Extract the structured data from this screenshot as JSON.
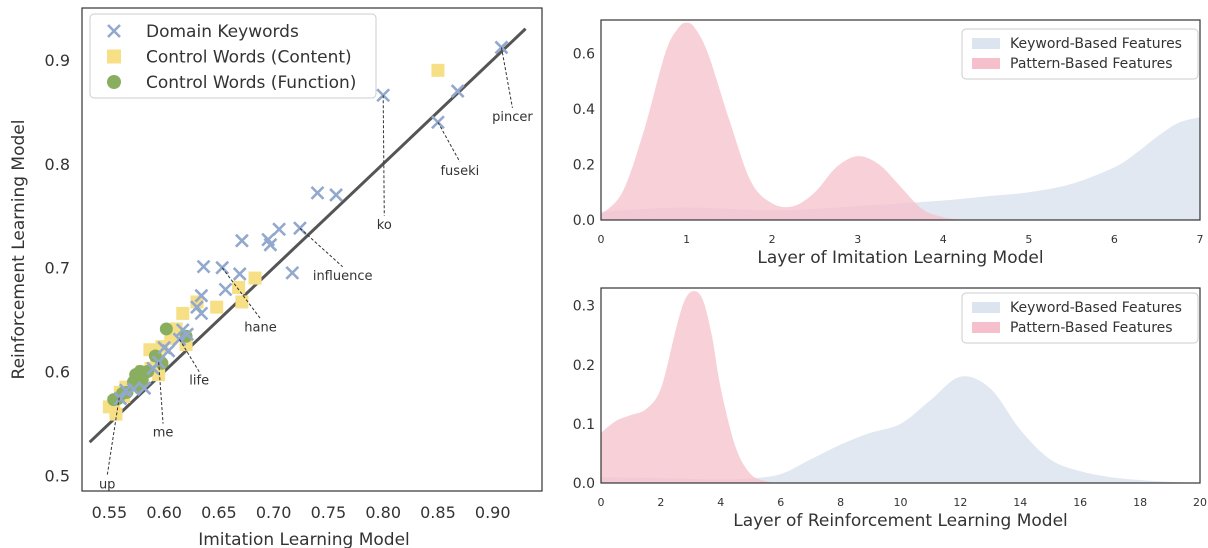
{
  "chart_data": [
    {
      "type": "scatter",
      "xlabel": "Imitation Learning Model",
      "ylabel": "Reinforcement Learning Model",
      "xlim": [
        0.525,
        0.945
      ],
      "ylim": [
        0.485,
        0.95
      ],
      "xticks": [
        "0.55",
        "0.60",
        "0.65",
        "0.70",
        "0.75",
        "0.80",
        "0.85",
        "0.90"
      ],
      "xtick_values": [
        0.55,
        0.6,
        0.65,
        0.7,
        0.75,
        0.8,
        0.85,
        0.9
      ],
      "yticks": [
        "0.5",
        "0.6",
        "0.7",
        "0.8",
        "0.9"
      ],
      "ytick_values": [
        0.5,
        0.6,
        0.7,
        0.8,
        0.9
      ],
      "legend_position": "top-left",
      "fit_line": [
        [
          0.532,
          0.532
        ],
        [
          0.93,
          0.93
        ]
      ],
      "series": [
        {
          "name": "Domain Keywords",
          "marker": "x",
          "color": "#92a8cd",
          "points": [
            [
              0.908,
              0.912
            ],
            [
              0.868,
              0.87
            ],
            [
              0.8,
              0.866
            ],
            [
              0.85,
              0.84
            ],
            [
              0.74,
              0.772
            ],
            [
              0.757,
              0.77
            ],
            [
              0.705,
              0.737
            ],
            [
              0.724,
              0.738
            ],
            [
              0.695,
              0.727
            ],
            [
              0.697,
              0.722
            ],
            [
              0.671,
              0.726
            ],
            [
              0.636,
              0.701
            ],
            [
              0.653,
              0.7
            ],
            [
              0.669,
              0.694
            ],
            [
              0.717,
              0.695
            ],
            [
              0.634,
              0.673
            ],
            [
              0.63,
              0.662
            ],
            [
              0.634,
              0.656
            ],
            [
              0.656,
              0.679
            ],
            [
              0.617,
              0.64
            ],
            [
              0.621,
              0.636
            ],
            [
              0.614,
              0.631
            ],
            [
              0.604,
              0.62
            ],
            [
              0.6,
              0.623
            ],
            [
              0.595,
              0.609
            ],
            [
              0.59,
              0.603
            ],
            [
              0.582,
              0.584
            ],
            [
              0.572,
              0.583
            ],
            [
              0.565,
              0.582
            ],
            [
              0.56,
              0.574
            ]
          ]
        },
        {
          "name": "Control Words (Content)",
          "marker": "square",
          "color": "#f6df85",
          "points": [
            [
              0.85,
              0.89
            ],
            [
              0.683,
              0.69
            ],
            [
              0.668,
              0.681
            ],
            [
              0.671,
              0.667
            ],
            [
              0.648,
              0.662
            ],
            [
              0.63,
              0.667
            ],
            [
              0.617,
              0.656
            ],
            [
              0.611,
              0.641
            ],
            [
              0.606,
              0.632
            ],
            [
              0.62,
              0.626
            ],
            [
              0.598,
              0.624
            ],
            [
              0.587,
              0.621
            ],
            [
              0.593,
              0.611
            ],
            [
              0.588,
              0.603
            ],
            [
              0.58,
              0.6
            ],
            [
              0.595,
              0.597
            ],
            [
              0.576,
              0.59
            ],
            [
              0.565,
              0.585
            ],
            [
              0.56,
              0.58
            ],
            [
              0.563,
              0.576
            ],
            [
              0.554,
              0.57
            ],
            [
              0.55,
              0.566
            ],
            [
              0.556,
              0.559
            ]
          ]
        },
        {
          "name": "Control Words (Function)",
          "marker": "circle",
          "color": "#8aae60",
          "points": [
            [
              0.602,
              0.641
            ],
            [
              0.62,
              0.634
            ],
            [
              0.592,
              0.615
            ],
            [
              0.598,
              0.608
            ],
            [
              0.585,
              0.6
            ],
            [
              0.578,
              0.6
            ],
            [
              0.574,
              0.597
            ],
            [
              0.58,
              0.592
            ],
            [
              0.572,
              0.59
            ],
            [
              0.576,
              0.586
            ],
            [
              0.566,
              0.58
            ],
            [
              0.562,
              0.579
            ],
            [
              0.558,
              0.574
            ],
            [
              0.554,
              0.573
            ]
          ]
        }
      ],
      "annotations": [
        {
          "text": "pincer",
          "point": [
            0.908,
            0.912
          ],
          "label": [
            0.918,
            0.85
          ]
        },
        {
          "text": "fuseki",
          "point": [
            0.85,
            0.84
          ],
          "label": [
            0.87,
            0.798
          ]
        },
        {
          "text": "ko",
          "point": [
            0.8,
            0.866
          ],
          "label": [
            0.801,
            0.746
          ]
        },
        {
          "text": "influence",
          "point": [
            0.724,
            0.738
          ],
          "label": [
            0.763,
            0.697
          ]
        },
        {
          "text": "hane",
          "point": [
            0.653,
            0.7
          ],
          "label": [
            0.688,
            0.647
          ]
        },
        {
          "text": "life",
          "point": [
            0.614,
            0.631
          ],
          "label": [
            0.632,
            0.596
          ]
        },
        {
          "text": "me",
          "point": [
            0.595,
            0.609
          ],
          "label": [
            0.599,
            0.546
          ]
        },
        {
          "text": "up",
          "point": [
            0.559,
            0.575
          ],
          "label": [
            0.548,
            0.496
          ]
        }
      ]
    },
    {
      "type": "area",
      "xlabel": "Layer of Imitation Learning Model",
      "ylabel": "",
      "xlim": [
        0,
        7
      ],
      "ylim": [
        0,
        0.72
      ],
      "xticks": [
        "0",
        "1",
        "2",
        "3",
        "4",
        "5",
        "6",
        "7"
      ],
      "xtick_values": [
        0,
        1,
        2,
        3,
        4,
        5,
        6,
        7
      ],
      "yticks": [
        "0.0",
        "0.2",
        "0.4",
        "0.6"
      ],
      "ytick_values": [
        0,
        0.2,
        0.4,
        0.6
      ],
      "legend_position": "top-right",
      "series": [
        {
          "name": "Keyword-Based Features",
          "color": "#dce4ef",
          "x": [
            0,
            0.5,
            1,
            1.5,
            2,
            2.5,
            3,
            3.5,
            4,
            4.5,
            5,
            5.5,
            6,
            6.25,
            6.5,
            6.75,
            7
          ],
          "values": [
            0.03,
            0.04,
            0.045,
            0.04,
            0.035,
            0.04,
            0.05,
            0.06,
            0.07,
            0.085,
            0.1,
            0.13,
            0.19,
            0.24,
            0.3,
            0.35,
            0.37
          ]
        },
        {
          "name": "Pattern-Based Features",
          "color": "#f5c0cb",
          "x": [
            0,
            0.25,
            0.5,
            0.75,
            0.9,
            1.0,
            1.1,
            1.25,
            1.5,
            1.75,
            2.0,
            2.25,
            2.5,
            2.75,
            3.0,
            3.25,
            3.5,
            3.75,
            4.0,
            4.25
          ],
          "values": [
            0.02,
            0.1,
            0.32,
            0.6,
            0.69,
            0.71,
            0.69,
            0.6,
            0.36,
            0.14,
            0.06,
            0.05,
            0.1,
            0.19,
            0.23,
            0.2,
            0.12,
            0.04,
            0.01,
            0.0
          ]
        }
      ]
    },
    {
      "type": "area",
      "xlabel": "Layer of Reinforcement Learning Model",
      "ylabel": "",
      "xlim": [
        0,
        20
      ],
      "ylim": [
        0,
        0.33
      ],
      "xticks": [
        "0",
        "2",
        "4",
        "6",
        "8",
        "10",
        "12",
        "14",
        "16",
        "18",
        "20"
      ],
      "xtick_values": [
        0,
        2,
        4,
        6,
        8,
        10,
        12,
        14,
        16,
        18,
        20
      ],
      "yticks": [
        "0.0",
        "0.1",
        "0.2",
        "0.3"
      ],
      "ytick_values": [
        0,
        0.1,
        0.2,
        0.3
      ],
      "legend_position": "top-right",
      "series": [
        {
          "name": "Keyword-Based Features",
          "color": "#dce4ef",
          "x": [
            0,
            2,
            4,
            5,
            6,
            7,
            8,
            9,
            10,
            11,
            12,
            13,
            14,
            15,
            16,
            17,
            18,
            19,
            20
          ],
          "values": [
            0.01,
            0.008,
            0.006,
            0.008,
            0.015,
            0.04,
            0.065,
            0.085,
            0.1,
            0.14,
            0.18,
            0.16,
            0.09,
            0.04,
            0.02,
            0.01,
            0.005,
            0.002,
            0.0
          ]
        },
        {
          "name": "Pattern-Based Features",
          "color": "#f5c0cb",
          "x": [
            0,
            0.5,
            1,
            1.5,
            2,
            2.5,
            2.8,
            3.1,
            3.4,
            3.7,
            4,
            4.5,
            5,
            5.5,
            6
          ],
          "values": [
            0.085,
            0.105,
            0.115,
            0.125,
            0.16,
            0.26,
            0.31,
            0.325,
            0.31,
            0.25,
            0.16,
            0.06,
            0.015,
            0.003,
            0.0
          ]
        }
      ]
    }
  ]
}
